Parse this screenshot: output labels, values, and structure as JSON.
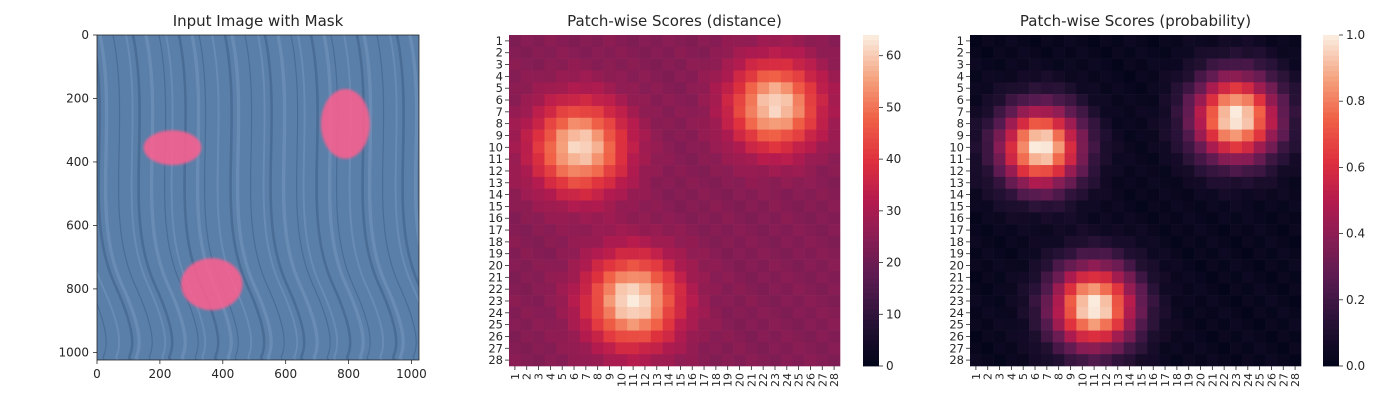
{
  "chart_data": [
    {
      "type": "image",
      "title": "Input Image with Mask",
      "xlim": [
        0,
        1024
      ],
      "ylim": [
        1024,
        0
      ],
      "xticks": [
        0,
        200,
        400,
        600,
        800,
        1000
      ],
      "yticks": [
        0,
        200,
        400,
        600,
        800,
        1000
      ],
      "background_color": "#5a7fa8",
      "mask_color": "#ff5f8f",
      "masks": [
        {
          "name": "mask-region-1",
          "cx": 240,
          "cy": 355,
          "rx": 92,
          "ry": 55
        },
        {
          "name": "mask-region-2",
          "cx": 790,
          "cy": 280,
          "rx": 78,
          "ry": 110
        },
        {
          "name": "mask-region-3",
          "cx": 365,
          "cy": 785,
          "rx": 98,
          "ry": 82
        }
      ]
    },
    {
      "type": "heatmap",
      "title": "Patch-wise Scores (distance)",
      "rows": [
        "1",
        "2",
        "3",
        "4",
        "5",
        "6",
        "7",
        "8",
        "9",
        "10",
        "11",
        "12",
        "13",
        "14",
        "15",
        "16",
        "17",
        "18",
        "19",
        "20",
        "21",
        "22",
        "23",
        "24",
        "25",
        "26",
        "27",
        "28"
      ],
      "cols": [
        "1",
        "2",
        "3",
        "4",
        "5",
        "6",
        "7",
        "8",
        "9",
        "10",
        "11",
        "12",
        "13",
        "14",
        "15",
        "16",
        "17",
        "18",
        "19",
        "20",
        "21",
        "22",
        "23",
        "24",
        "25",
        "26",
        "27",
        "28"
      ],
      "vmin": 0,
      "vmax": 64,
      "colorbar_ticks": [
        0,
        10,
        20,
        30,
        40,
        50,
        60
      ],
      "colormap": "rocket",
      "blobs": [
        {
          "row": 10,
          "col": 6.5,
          "sigma": 2.7,
          "peak": 38
        },
        {
          "row": 6.5,
          "col": 23,
          "sigma": 2.6,
          "peak": 38
        },
        {
          "row": 23,
          "col": 11,
          "sigma": 2.7,
          "peak": 40
        }
      ],
      "base": 24
    },
    {
      "type": "heatmap",
      "title": "Patch-wise Scores (probability)",
      "rows": [
        "1",
        "2",
        "3",
        "4",
        "5",
        "6",
        "7",
        "8",
        "9",
        "10",
        "11",
        "12",
        "13",
        "14",
        "15",
        "16",
        "17",
        "18",
        "19",
        "20",
        "21",
        "22",
        "23",
        "24",
        "25",
        "26",
        "27",
        "28"
      ],
      "cols": [
        "1",
        "2",
        "3",
        "4",
        "5",
        "6",
        "7",
        "8",
        "9",
        "10",
        "11",
        "12",
        "13",
        "14",
        "15",
        "16",
        "17",
        "18",
        "19",
        "20",
        "21",
        "22",
        "23",
        "24",
        "25",
        "26",
        "27",
        "28"
      ],
      "vmin": 0.0,
      "vmax": 1.0,
      "colorbar_ticks": [
        0.0,
        0.2,
        0.4,
        0.6,
        0.8,
        1.0
      ],
      "colormap": "rocket",
      "blobs": [
        {
          "row": 10,
          "col": 6.5,
          "sigma": 2.4,
          "peak": 1.0
        },
        {
          "row": 7.5,
          "col": 23,
          "sigma": 2.5,
          "peak": 1.0
        },
        {
          "row": 23.5,
          "col": 11,
          "sigma": 2.5,
          "peak": 1.0
        }
      ],
      "base": 0.02
    }
  ]
}
